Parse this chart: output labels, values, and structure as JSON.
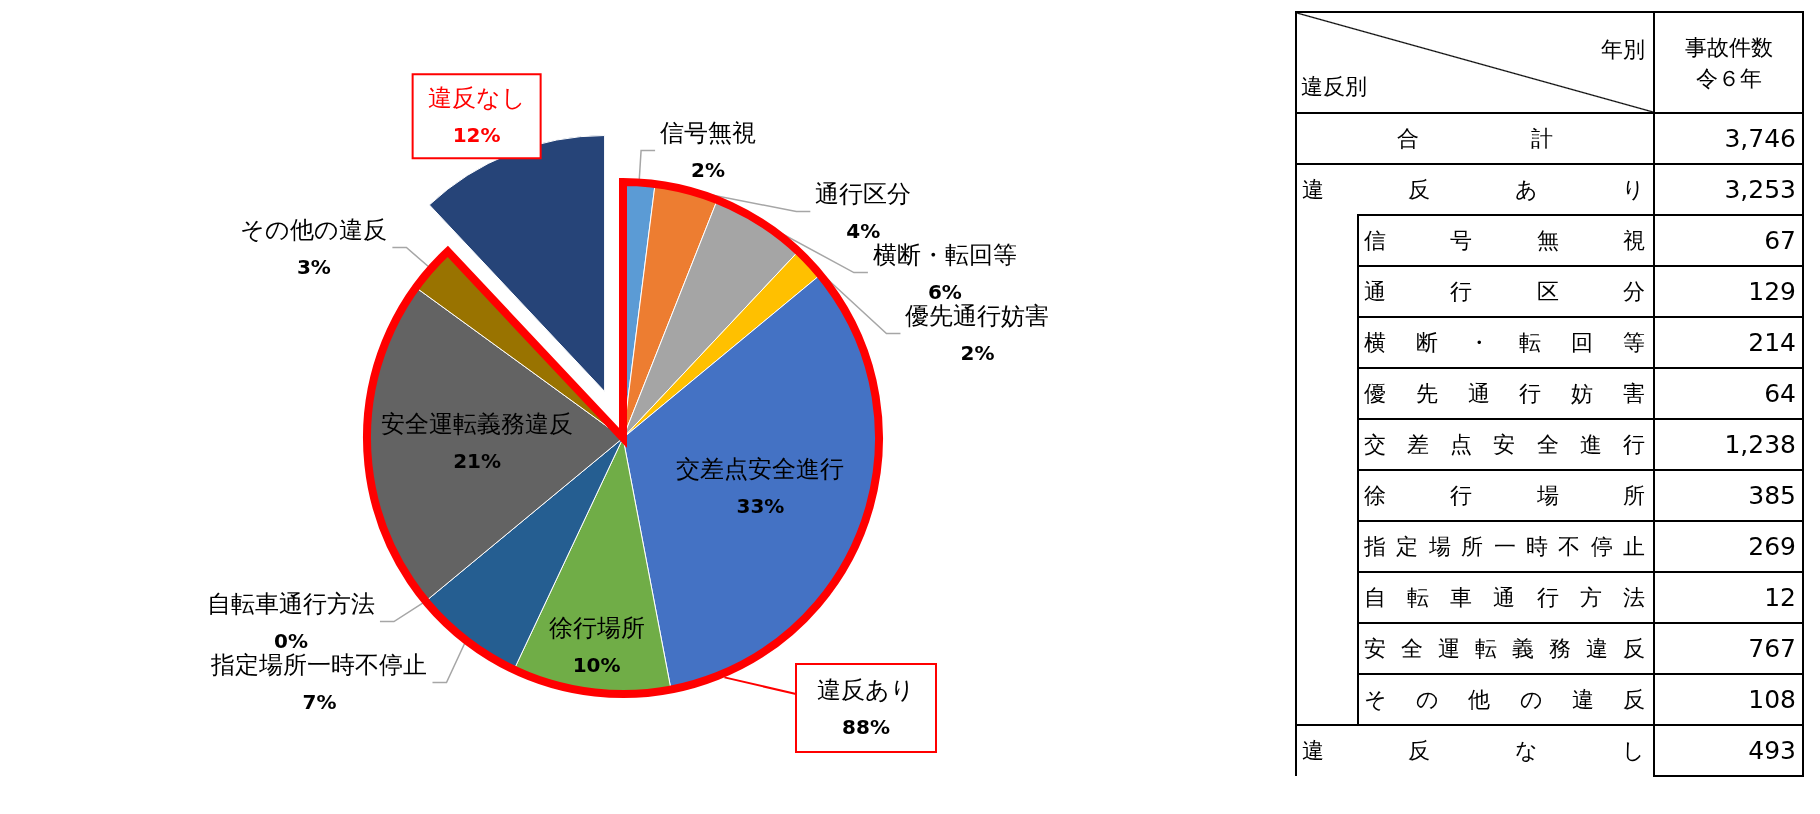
{
  "chart_data": [
    {
      "type": "pie",
      "categories": [
        "信号無視",
        "通行区分",
        "横断・転回等",
        "優先通行妨害",
        "交差点安全進行",
        "徐行場所",
        "指定場所一時不停止",
        "自転車通行方法",
        "安全運転義務違反",
        "その他の違反",
        "違反なし"
      ],
      "values": [
        2,
        4,
        6,
        2,
        33,
        10,
        7,
        0,
        21,
        3,
        12
      ],
      "value_labels": [
        "2%",
        "4%",
        "6%",
        "2%",
        "33%",
        "10%",
        "7%",
        "0%",
        "21%",
        "3%",
        "12%"
      ],
      "colors": [
        "#5b9bd5",
        "#ed7d31",
        "#a5a5a5",
        "#ffc000",
        "#4472c4",
        "#70ad47",
        "#255e91",
        "#9e480e",
        "#636363",
        "#997300",
        "#264478"
      ],
      "annotations": [
        "違反あり\n88%"
      ]
    },
    {
      "type": "other",
      "xlabel": "年別",
      "ylabel": "違反別",
      "annotations": [
        "事故件数",
        "令６年"
      ],
      "categories": [
        "合計",
        "違反あり",
        "信号無視",
        "通行区分",
        "横断・転回等",
        "優先通行妨害",
        "交差点安全進行",
        "徐行場所",
        "指定場所一時不停止",
        "自転車通行方法",
        "安全運転義務違反",
        "その他の違反",
        "違反なし"
      ],
      "value_labels": [
        "3,746",
        "3,253",
        "67",
        "129",
        "214",
        "64",
        "1,238",
        "385",
        "269",
        "12",
        "767",
        "108",
        "493"
      ]
    }
  ]
}
